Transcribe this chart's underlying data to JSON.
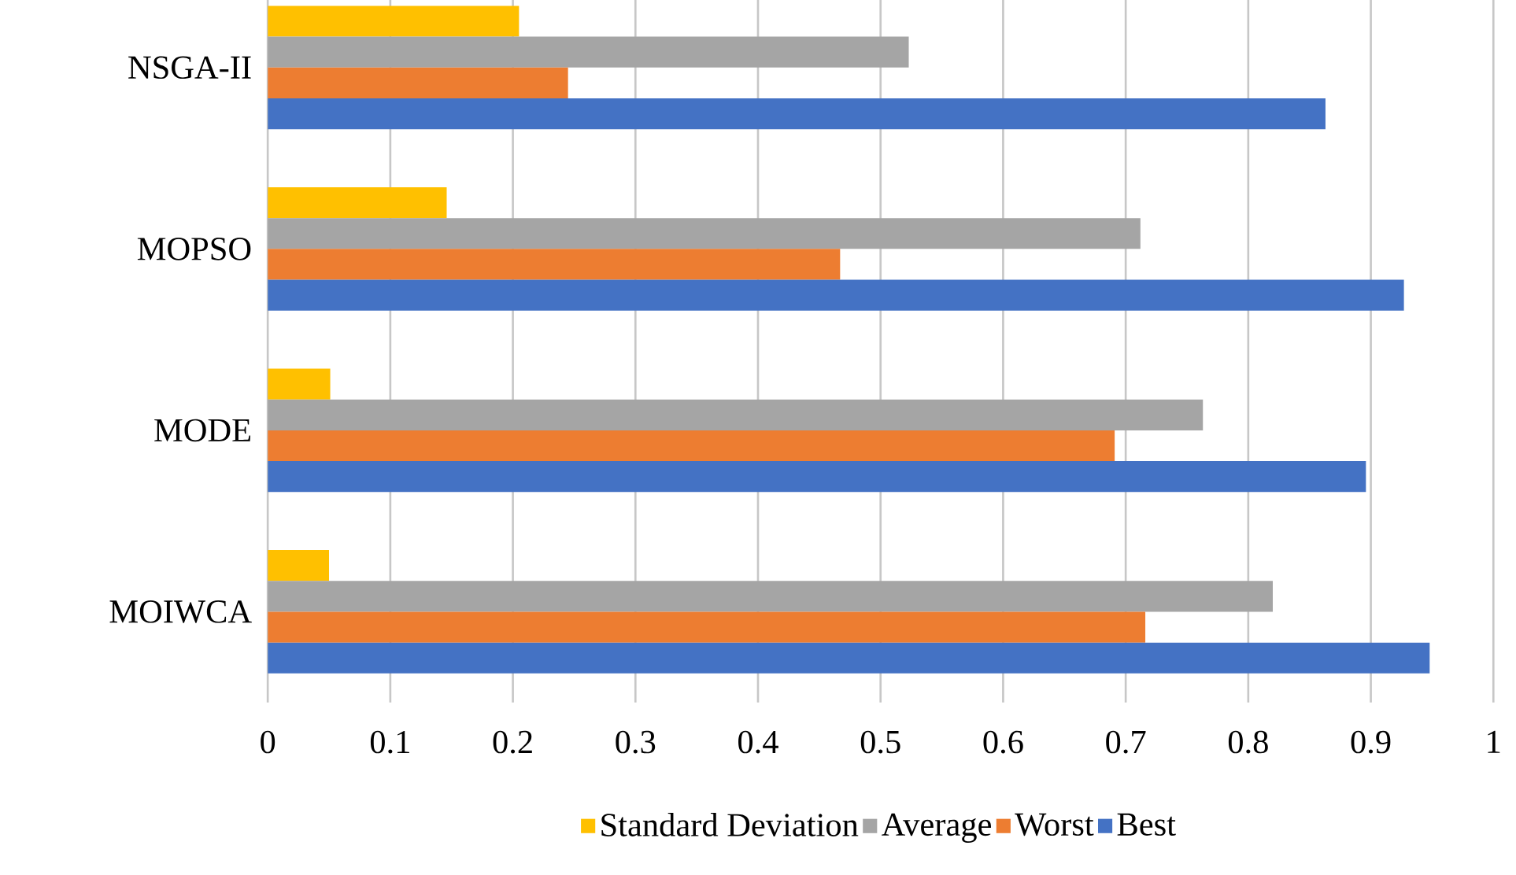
{
  "chart_data": {
    "type": "bar",
    "orientation": "horizontal",
    "categories": [
      "NSGA-II",
      "MOPSO",
      "MODE",
      "MOIWCA"
    ],
    "series": [
      {
        "name": "Standard Deviation",
        "color": "#ffc000",
        "values": [
          0.205,
          0.146,
          0.051,
          0.05
        ]
      },
      {
        "name": "Average",
        "color": "#a5a5a5",
        "values": [
          0.523,
          0.712,
          0.763,
          0.82
        ]
      },
      {
        "name": "Worst",
        "color": "#ed7d31",
        "values": [
          0.245,
          0.467,
          0.691,
          0.716
        ]
      },
      {
        "name": "Best",
        "color": "#4472c4",
        "values": [
          0.863,
          0.927,
          0.896,
          0.948
        ]
      }
    ],
    "xlim": [
      0,
      1
    ],
    "xticks": [
      0,
      0.1,
      0.2,
      0.3,
      0.4,
      0.5,
      0.6,
      0.7,
      0.8,
      0.9,
      1
    ],
    "grid": "x",
    "legend": "bottom"
  }
}
